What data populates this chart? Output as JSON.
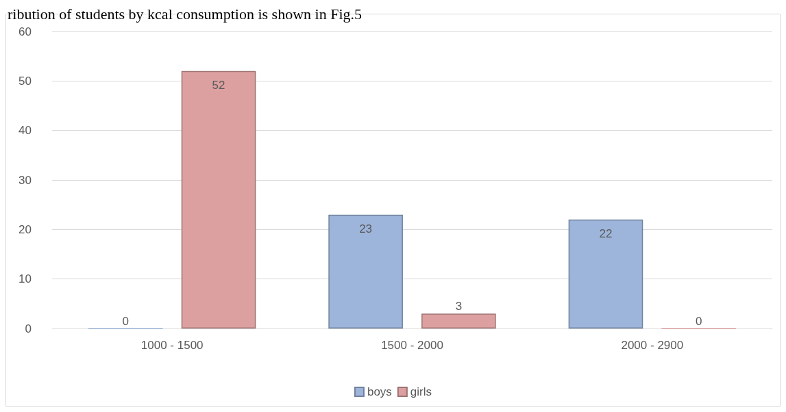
{
  "chart_data": {
    "type": "bar",
    "title": "ribution of students by kcal consumption is shown in Fig.5",
    "categories": [
      "1000 - 1500",
      "1500 - 2000",
      "2000 - 2900"
    ],
    "series": [
      {
        "name": "boys",
        "color": "#9db5da",
        "values": [
          0,
          23,
          22
        ]
      },
      {
        "name": "girls",
        "color": "#dca0a0",
        "values": [
          52,
          3,
          0
        ]
      }
    ],
    "ylim": [
      0,
      60
    ],
    "yticks": [
      0,
      10,
      20,
      30,
      40,
      50,
      60
    ],
    "grid": "y",
    "legend": "bottom",
    "data_labels": true
  }
}
